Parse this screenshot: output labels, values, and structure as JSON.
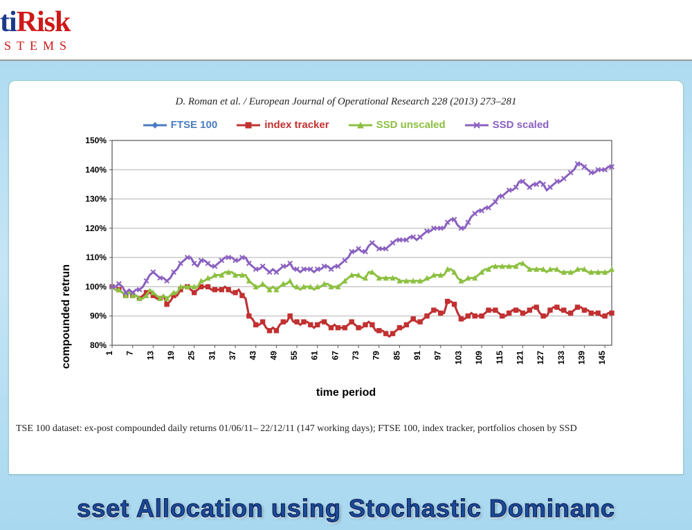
{
  "logo": {
    "part1_visible": "ti",
    "part2": "Risk",
    "subtitle": "STEMS",
    "part1_color": "#1a3a8a",
    "part2_color": "#d01818",
    "sub_color": "#d01818"
  },
  "citation": "D. Roman et al. / European Journal of Operational Research 228 (2013) 273–281",
  "caption": "TSE 100 dataset: ex-post compounded daily returns 01/06/11– 22/12/11 (147 working days); FTSE 100, index tracker, portfolios chosen by SSD",
  "banner": "sset Allocation using Stochastic Dominanc",
  "chart": {
    "type": "line",
    "xlabel": "time period",
    "ylabel": "compounded retrun",
    "xlim": [
      1,
      147
    ],
    "ylim": [
      80,
      150
    ],
    "x_ticks": [
      1,
      7,
      13,
      19,
      25,
      31,
      37,
      43,
      49,
      55,
      61,
      67,
      73,
      79,
      85,
      91,
      97,
      103,
      109,
      115,
      121,
      127,
      133,
      139,
      145
    ],
    "y_ticks": [
      80,
      90,
      100,
      110,
      120,
      130,
      140,
      150
    ],
    "y_tick_suffix": "%",
    "grid_color": "#b0b0b0",
    "axis_color": "#555555",
    "background_color": "#ffffff",
    "tick_fontsize": 12,
    "label_fontsize": 16,
    "label_fontweight": "bold",
    "line_width": 3,
    "marker_size": 3.2,
    "series": [
      {
        "name": "FTSE 100",
        "color": "#4a7cc0",
        "marker": "diamond",
        "data": [
          100,
          99,
          99,
          98,
          97,
          98,
          97,
          97,
          96,
          97,
          98,
          98,
          97,
          96,
          96,
          97,
          94,
          95,
          97,
          97,
          99,
          100,
          100,
          99,
          98,
          99,
          100,
          100,
          100,
          99,
          99,
          99,
          99,
          100,
          99,
          98,
          98,
          99,
          97,
          96,
          90,
          89,
          87,
          87,
          88,
          86,
          85,
          86,
          85,
          87,
          88,
          88,
          90,
          88,
          88,
          87,
          88,
          88,
          87,
          86,
          87,
          88,
          88,
          87,
          86,
          87,
          86,
          86,
          86,
          87,
          88,
          87,
          86,
          86,
          87,
          88,
          87,
          85,
          85,
          85,
          84,
          83,
          84,
          85,
          86,
          86,
          87,
          88,
          89,
          88,
          88,
          89,
          90,
          91,
          92,
          92,
          91,
          91,
          95,
          95,
          94,
          91,
          89,
          89,
          90,
          91,
          90,
          90,
          90,
          91,
          92,
          92,
          92,
          91,
          90,
          90,
          91,
          92,
          92,
          92,
          91,
          91,
          92,
          93,
          93,
          91,
          90,
          90,
          92,
          93,
          93,
          92,
          92,
          91,
          91,
          92,
          93,
          93,
          92,
          92,
          91,
          91,
          91,
          90,
          90,
          91,
          91
        ]
      },
      {
        "name": "index tracker",
        "color": "#c23030",
        "marker": "square",
        "data": [
          100,
          99,
          99,
          98,
          97,
          98,
          97,
          97,
          96,
          97,
          98,
          98,
          97,
          96,
          96,
          97,
          94,
          95,
          97,
          97,
          99,
          100,
          100,
          99,
          98,
          99,
          100,
          100,
          100,
          99,
          99,
          99,
          99,
          100,
          99,
          98,
          98,
          99,
          97,
          96,
          90,
          89,
          87,
          87,
          88,
          86,
          85,
          86,
          85,
          87,
          88,
          88,
          90,
          88,
          88,
          87,
          88,
          88,
          87,
          86,
          87,
          88,
          88,
          87,
          86,
          87,
          86,
          86,
          86,
          87,
          88,
          87,
          86,
          86,
          87,
          88,
          87,
          85,
          85,
          85,
          84,
          83,
          84,
          85,
          86,
          86,
          87,
          88,
          89,
          88,
          88,
          89,
          90,
          91,
          92,
          92,
          91,
          91,
          95,
          95,
          94,
          91,
          89,
          89,
          90,
          91,
          90,
          90,
          90,
          91,
          92,
          92,
          92,
          91,
          90,
          90,
          91,
          92,
          92,
          92,
          91,
          91,
          92,
          93,
          93,
          91,
          90,
          90,
          92,
          93,
          93,
          92,
          92,
          91,
          91,
          92,
          93,
          93,
          92,
          92,
          91,
          91,
          91,
          90,
          90,
          91,
          91
        ]
      },
      {
        "name": "SSD unscaled",
        "color": "#8cc040",
        "marker": "triangle",
        "data": [
          100,
          99,
          99,
          98,
          97,
          98,
          97,
          97,
          96,
          96,
          97,
          99,
          98,
          97,
          96,
          97,
          96,
          97,
          98,
          98,
          100,
          100,
          100,
          100,
          100,
          100,
          102,
          102,
          103,
          103,
          104,
          104,
          104,
          105,
          105,
          105,
          104,
          104,
          104,
          104,
          102,
          101,
          100,
          100,
          101,
          100,
          99,
          100,
          99,
          100,
          101,
          101,
          102,
          100,
          100,
          99,
          100,
          100,
          100,
          99,
          100,
          100,
          101,
          101,
          100,
          100,
          100,
          101,
          102,
          103,
          104,
          104,
          104,
          103,
          103,
          105,
          105,
          104,
          103,
          103,
          103,
          103,
          103,
          103,
          102,
          102,
          102,
          102,
          102,
          102,
          102,
          102,
          103,
          103,
          104,
          104,
          104,
          104,
          106,
          106,
          105,
          103,
          102,
          102,
          103,
          103,
          103,
          104,
          105,
          106,
          106,
          107,
          107,
          107,
          107,
          107,
          107,
          107,
          107,
          108,
          108,
          107,
          106,
          106,
          106,
          106,
          106,
          105,
          106,
          106,
          106,
          105,
          105,
          105,
          105,
          105,
          106,
          106,
          106,
          105,
          105,
          105,
          105,
          105,
          105,
          105,
          106
        ]
      },
      {
        "name": "SSD scaled",
        "color": "#8a60c0",
        "marker": "x",
        "data": [
          100,
          100,
          101,
          100,
          98,
          99,
          98,
          99,
          99,
          100,
          102,
          104,
          105,
          104,
          103,
          103,
          102,
          103,
          105,
          106,
          108,
          109,
          110,
          110,
          108,
          107,
          109,
          109,
          108,
          107,
          107,
          108,
          109,
          110,
          110,
          110,
          109,
          109,
          110,
          110,
          108,
          107,
          106,
          106,
          107,
          106,
          105,
          106,
          105,
          106,
          107,
          107,
          108,
          106,
          106,
          105,
          106,
          106,
          106,
          105,
          106,
          106,
          107,
          107,
          106,
          107,
          107,
          108,
          109,
          110,
          112,
          112,
          113,
          112,
          112,
          114,
          115,
          114,
          113,
          113,
          113,
          114,
          115,
          116,
          116,
          116,
          116,
          117,
          117,
          116,
          117,
          118,
          119,
          119,
          120,
          120,
          120,
          120,
          122,
          123,
          123,
          121,
          120,
          120,
          122,
          124,
          125,
          126,
          126,
          127,
          127,
          128,
          129,
          131,
          131,
          132,
          133,
          133,
          134,
          136,
          136,
          135,
          134,
          135,
          135,
          136,
          135,
          133,
          134,
          135,
          136,
          136,
          137,
          138,
          139,
          140,
          142,
          142,
          141,
          140,
          139,
          139,
          140,
          140,
          140,
          141,
          141
        ]
      }
    ]
  },
  "colors": {
    "page_bg_top": "#a8d8f0",
    "page_bg_mid": "#c5e5f5",
    "panel_bg": "#ffffff",
    "banner_fill": "#1a4a9a",
    "banner_stroke": "#0a1a4a"
  }
}
